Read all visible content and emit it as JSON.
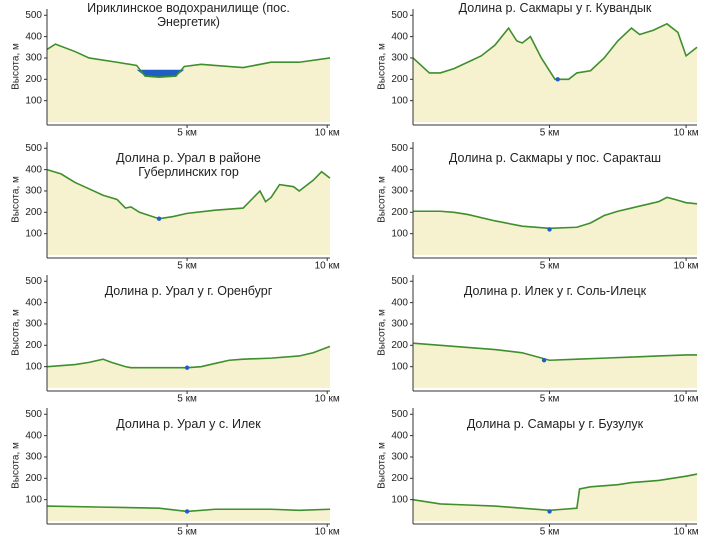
{
  "chart_data": [
    {
      "type": "area",
      "title": "Ириклинское водохранилище (пос. Энергетик)",
      "ylabel": "Высота, м",
      "color": "#3f8f2c",
      "fill": "#f6f1cf",
      "x": [
        0,
        0.3,
        1,
        1.5,
        2.5,
        3.2,
        3.5,
        4,
        4.6,
        4.9,
        5.5,
        6,
        7,
        8,
        9,
        10.1
      ],
      "values": [
        340,
        365,
        330,
        300,
        280,
        265,
        215,
        210,
        215,
        260,
        270,
        265,
        255,
        280,
        280,
        300
      ],
      "water": {
        "x": [
          3.2,
          4.9
        ],
        "level": 245,
        "color": "#1f5fc4"
      },
      "xlim": [
        0,
        10.1
      ],
      "ylim": [
        0,
        520
      ],
      "yticks": [
        100,
        200,
        300,
        400,
        500
      ],
      "xticks": [
        {
          "value": 5,
          "label": "5 км"
        },
        {
          "value": 10,
          "label": "10 км"
        }
      ]
    },
    {
      "type": "area",
      "title": "Долина р. Сакмары у г. Кувандык",
      "ylabel": "Высота, м",
      "color": "#3f8f2c",
      "fill": "#f6f1cf",
      "x": [
        0,
        0.6,
        1,
        1.5,
        2,
        2.5,
        3,
        3.5,
        3.8,
        4,
        4.3,
        4.7,
        5,
        5.2,
        5.7,
        6,
        6.5,
        7,
        7.5,
        8,
        8.3,
        8.8,
        9.3,
        9.7,
        10,
        10.4
      ],
      "values": [
        300,
        230,
        230,
        250,
        280,
        310,
        360,
        440,
        380,
        370,
        400,
        300,
        240,
        200,
        200,
        230,
        240,
        300,
        380,
        440,
        410,
        430,
        460,
        420,
        310,
        350
      ],
      "river": {
        "x": 5.3,
        "y": 200,
        "color": "#1f5fc4"
      },
      "xlim": [
        0,
        10.4
      ],
      "ylim": [
        0,
        520
      ],
      "yticks": [
        100,
        200,
        300,
        400,
        500
      ],
      "xticks": [
        {
          "value": 5,
          "label": "5 км"
        },
        {
          "value": 10,
          "label": "10 км"
        }
      ]
    },
    {
      "type": "area",
      "title": "Долина р. Урал в районе Губерлинских гор",
      "ylabel": "Высота, м",
      "color": "#3f8f2c",
      "fill": "#f6f1cf",
      "x": [
        0,
        0.5,
        1,
        1.5,
        2,
        2.5,
        2.8,
        3,
        3.3,
        4,
        4.5,
        5,
        6,
        7,
        7.3,
        7.6,
        7.8,
        8,
        8.3,
        8.8,
        9,
        9.5,
        9.8,
        10.1
      ],
      "values": [
        400,
        380,
        340,
        310,
        280,
        260,
        220,
        225,
        200,
        170,
        180,
        195,
        210,
        220,
        260,
        300,
        250,
        270,
        330,
        320,
        300,
        350,
        390,
        360
      ],
      "river": {
        "x": 4,
        "y": 170,
        "color": "#1f5fc4"
      },
      "xlim": [
        0,
        10.1
      ],
      "ylim": [
        0,
        520
      ],
      "yticks": [
        100,
        200,
        300,
        400,
        500
      ],
      "xticks": [
        {
          "value": 5,
          "label": "5 км"
        },
        {
          "value": 10,
          "label": "10 км"
        }
      ]
    },
    {
      "type": "area",
      "title": "Долина р. Сакмары у пос. Саракташ",
      "ylabel": "Высота, м",
      "color": "#3f8f2c",
      "fill": "#f6f1cf",
      "x": [
        0,
        1,
        1.5,
        2,
        3,
        4,
        5,
        6,
        6.5,
        7,
        7.5,
        8,
        8.5,
        9,
        9.3,
        9.6,
        10,
        10.4
      ],
      "values": [
        205,
        205,
        200,
        190,
        160,
        135,
        125,
        130,
        150,
        185,
        205,
        220,
        235,
        250,
        270,
        260,
        245,
        240
      ],
      "river": {
        "x": 5,
        "y": 120,
        "color": "#1f5fc4"
      },
      "xlim": [
        0,
        10.4
      ],
      "ylim": [
        0,
        520
      ],
      "yticks": [
        100,
        200,
        300,
        400,
        500
      ],
      "xticks": [
        {
          "value": 5,
          "label": "5 км"
        },
        {
          "value": 10,
          "label": "10 км"
        }
      ]
    },
    {
      "type": "area",
      "title": "Долина р. Урал у г. Оренбург",
      "ylabel": "Высота, м",
      "color": "#3f8f2c",
      "fill": "#f6f1cf",
      "x": [
        0,
        1,
        1.5,
        2,
        2.3,
        2.8,
        3,
        4,
        5,
        5.5,
        6,
        6.5,
        7,
        8,
        9,
        9.5,
        10.1
      ],
      "values": [
        100,
        110,
        120,
        135,
        120,
        100,
        95,
        95,
        95,
        100,
        115,
        130,
        135,
        140,
        150,
        165,
        195
      ],
      "river": {
        "x": 5,
        "y": 95,
        "color": "#1f5fc4"
      },
      "xlim": [
        0,
        10.1
      ],
      "ylim": [
        0,
        520
      ],
      "yticks": [
        100,
        200,
        300,
        400,
        500
      ],
      "xticks": [
        {
          "value": 5,
          "label": "5 км"
        },
        {
          "value": 10,
          "label": "10 км"
        }
      ]
    },
    {
      "type": "area",
      "title": "Долина р. Илек у  г. Соль-Илецк",
      "ylabel": "Высота, м",
      "color": "#3f8f2c",
      "fill": "#f6f1cf",
      "x": [
        0,
        1,
        2,
        3,
        4,
        5,
        6,
        7,
        8,
        9,
        10,
        10.4
      ],
      "values": [
        210,
        200,
        190,
        180,
        165,
        130,
        135,
        140,
        145,
        150,
        155,
        155
      ],
      "river": {
        "x": 4.8,
        "y": 130,
        "color": "#1f5fc4"
      },
      "xlim": [
        0,
        10.4
      ],
      "ylim": [
        0,
        520
      ],
      "yticks": [
        100,
        200,
        300,
        400,
        500
      ],
      "xticks": [
        {
          "value": 5,
          "label": "5 км"
        },
        {
          "value": 10,
          "label": "10 км"
        }
      ]
    },
    {
      "type": "area",
      "title": "Долина р. Урал у с. Илек",
      "ylabel": "Высота, м",
      "color": "#3f8f2c",
      "fill": "#f6f1cf",
      "x": [
        0,
        2,
        4,
        5,
        6,
        8,
        9,
        10.1
      ],
      "values": [
        70,
        65,
        60,
        45,
        55,
        55,
        50,
        55
      ],
      "river": {
        "x": 5,
        "y": 45,
        "color": "#1f5fc4"
      },
      "xlim": [
        0,
        10.1
      ],
      "ylim": [
        0,
        520
      ],
      "yticks": [
        100,
        200,
        300,
        400,
        500
      ],
      "xticks": [
        {
          "value": 5,
          "label": "5 км"
        },
        {
          "value": 10,
          "label": "10 км"
        }
      ]
    },
    {
      "type": "area",
      "title": "Долина р. Самары у г. Бузулук",
      "ylabel": "Высота, м",
      "color": "#3f8f2c",
      "fill": "#f6f1cf",
      "x": [
        0,
        1,
        2,
        3,
        4,
        5,
        5.5,
        6,
        6.1,
        6.5,
        7.5,
        8,
        9,
        10,
        10.4
      ],
      "values": [
        100,
        80,
        75,
        70,
        60,
        50,
        55,
        60,
        150,
        160,
        170,
        180,
        190,
        210,
        220
      ],
      "river": {
        "x": 5,
        "y": 45,
        "color": "#1f5fc4"
      },
      "xlim": [
        0,
        10.4
      ],
      "ylim": [
        0,
        520
      ],
      "yticks": [
        100,
        200,
        300,
        400,
        500
      ],
      "xticks": [
        {
          "value": 5,
          "label": "5 км"
        },
        {
          "value": 10,
          "label": "10 км"
        }
      ]
    }
  ]
}
